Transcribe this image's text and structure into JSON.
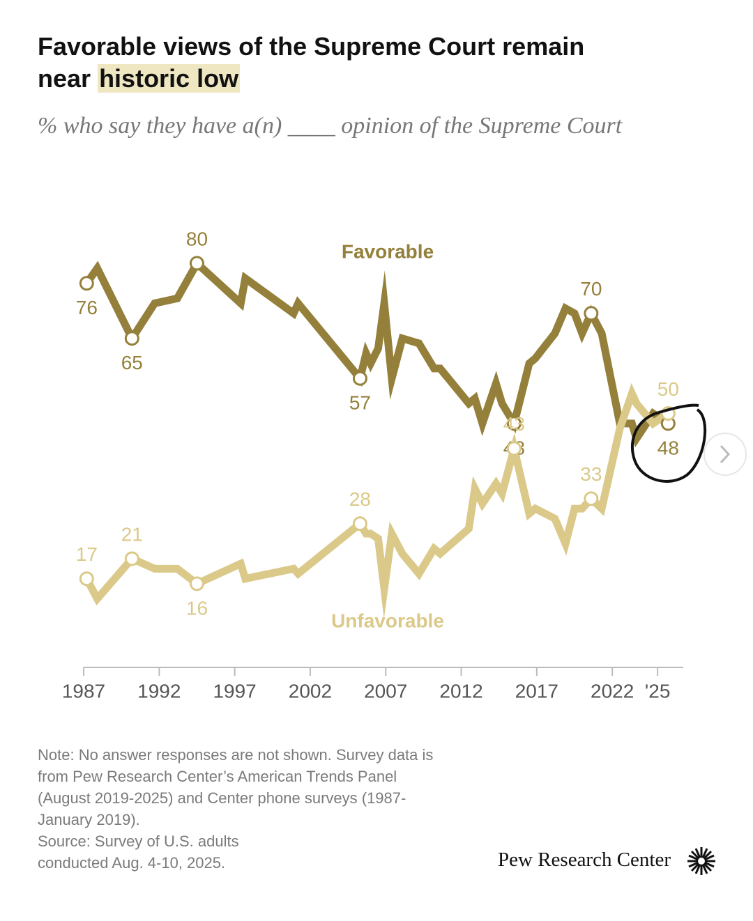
{
  "chart_data": {
    "type": "line",
    "title": [
      "Favorable views of the Supreme Court remain",
      "near",
      "historic low"
    ],
    "subtitle": "% who say they have a(n) ____ opinion of the Supreme Court",
    "x": [
      1987.2,
      1987.9,
      1990.2,
      1991.7,
      1993.2,
      1994.5,
      1997.4,
      1997.7,
      2000.9,
      2001.2,
      2005.3,
      2005.7,
      2006.0,
      2006.5,
      2006.9,
      2007.4,
      2008.1,
      2009.2,
      2010.2,
      2010.6,
      2012.5,
      2012.9,
      2013.4,
      2014.3,
      2014.7,
      2015.5,
      2016.5,
      2016.9,
      2018.2,
      2018.9,
      2019.5,
      2020.0,
      2020.6,
      2021.3,
      2022.5,
      2023.3,
      2023.6,
      2024.7,
      2025.7
    ],
    "series": [
      {
        "name": "Favorable",
        "color": "#94803a",
        "values": [
          76,
          79,
          65,
          72,
          73,
          80,
          72,
          77,
          70,
          72,
          57,
          62,
          60,
          63,
          72,
          57,
          65,
          64,
          59,
          59,
          52,
          53,
          48,
          56,
          52,
          48,
          60,
          61,
          66,
          71,
          70,
          66,
          70,
          66,
          48,
          48,
          45,
          50,
          48
        ],
        "labeled_points": [
          0,
          2,
          5,
          10,
          25,
          32,
          38
        ]
      },
      {
        "name": "Unfavorable",
        "color": "#dbc98a",
        "values": [
          17,
          13,
          21,
          19,
          19,
          16,
          20,
          17,
          19,
          18,
          28,
          26,
          26,
          25,
          15,
          26,
          22,
          18,
          23,
          22,
          27,
          35,
          32,
          36,
          34,
          43,
          30,
          31,
          29,
          24,
          31,
          31,
          33,
          31,
          47,
          54,
          52,
          48,
          50
        ],
        "labeled_points": [
          0,
          2,
          5,
          10,
          25,
          32,
          38
        ]
      }
    ],
    "xlim": [
      1987,
      2026.7
    ],
    "xticks": [
      1987,
      1992,
      1997,
      2002,
      2007,
      2012,
      2017,
      2022,
      {
        "value": 2025,
        "label": "'25"
      }
    ],
    "ylim": [
      10,
      85
    ],
    "note": "Note: No answer responses are not shown. Survey data is from Pew Research Center’s American Trends Panel (August 2019-2025) and Center phone surveys (1987-January 2019).",
    "source": "Source: Survey of U.S. adults conducted Aug. 4-10, 2025.",
    "brand": "Pew Research Center"
  }
}
